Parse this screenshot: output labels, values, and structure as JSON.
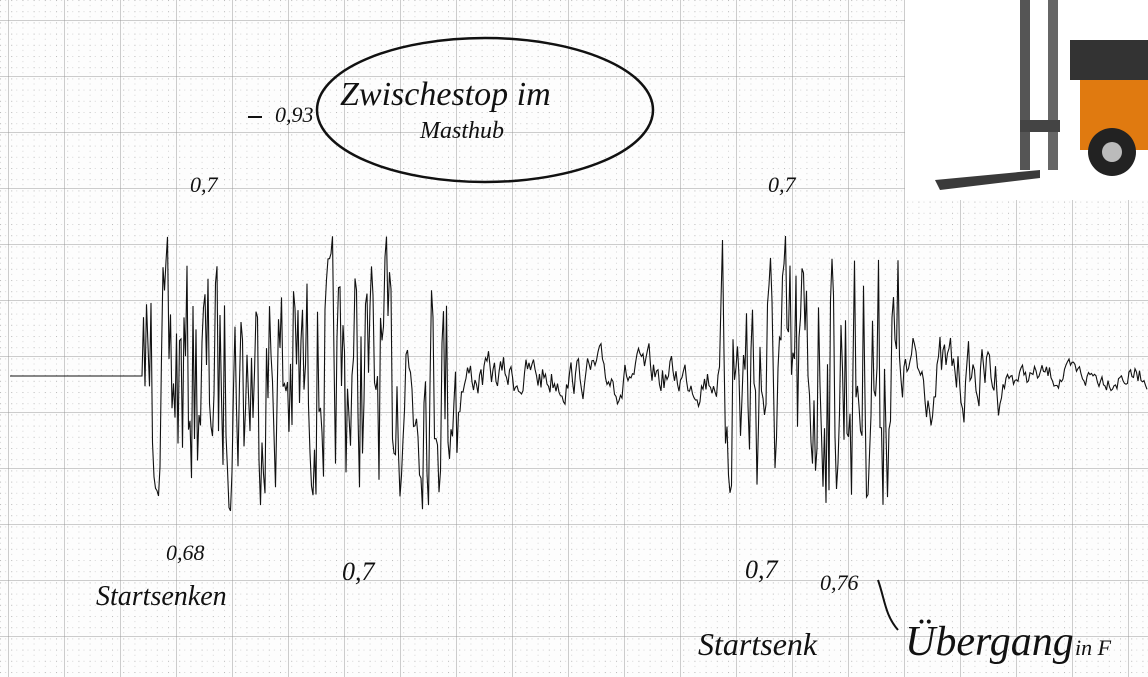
{
  "annotations": {
    "circle_note": [
      "Zwischestop im",
      "Masthub"
    ],
    "peaks": [
      "0,93",
      "0,7",
      "0,7"
    ],
    "troughs": [
      "0,68",
      "0,7",
      "0,7",
      "0,76"
    ],
    "labels": [
      "Startsenken",
      "Startsenk",
      "Übergang",
      "in F"
    ]
  }
}
